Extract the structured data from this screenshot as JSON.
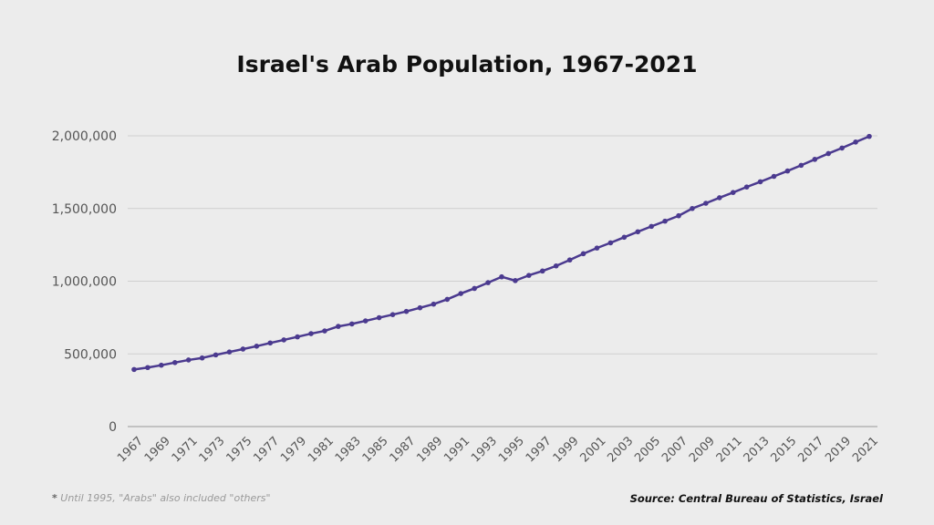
{
  "chart_data": {
    "type": "line",
    "title": "Israel's Arab Population, 1967-2021",
    "xlabel": "",
    "ylabel": "",
    "ylim": [
      0,
      2000000
    ],
    "yticks": [
      0,
      500000,
      1000000,
      1500000,
      2000000
    ],
    "ytick_labels": [
      "0",
      "500,000",
      "1,000,000",
      "1,500,000",
      "2,000,000"
    ],
    "grid": true,
    "x": [
      1967,
      1968,
      1969,
      1970,
      1971,
      1972,
      1973,
      1974,
      1975,
      1976,
      1977,
      1978,
      1979,
      1980,
      1981,
      1982,
      1983,
      1984,
      1985,
      1986,
      1987,
      1988,
      1989,
      1990,
      1991,
      1992,
      1993,
      1994,
      1995,
      1996,
      1997,
      1998,
      1999,
      2000,
      2001,
      2002,
      2003,
      2004,
      2005,
      2006,
      2007,
      2008,
      2009,
      2010,
      2011,
      2012,
      2013,
      2014,
      2015,
      2016,
      2017,
      2018,
      2019,
      2020,
      2021
    ],
    "xtick_labels": [
      "1967",
      "1969",
      "1971",
      "1973",
      "1975",
      "1977",
      "1979",
      "1981",
      "1983",
      "1985",
      "1987",
      "1989",
      "1991",
      "1993",
      "1995",
      "1997",
      "1999",
      "2001",
      "2003",
      "2005",
      "2007",
      "2009",
      "2011",
      "2013",
      "2015",
      "2017",
      "2019",
      "2021"
    ],
    "series": [
      {
        "name": "Arab population",
        "color": "#4b3a8f",
        "values": [
          392700,
          406000,
          422000,
          440000,
          458000,
          472000,
          493000,
          513000,
          533000,
          553000,
          575000,
          596000,
          617000,
          639000,
          658000,
          689000,
          706000,
          727000,
          749000,
          770000,
          792000,
          817000,
          842000,
          875000,
          915000,
          950000,
          990000,
          1030000,
          1004000,
          1040000,
          1070000,
          1105000,
          1146000,
          1189000,
          1228000,
          1264000,
          1302000,
          1340000,
          1377000,
          1413000,
          1450000,
          1500000,
          1536000,
          1574000,
          1610000,
          1648000,
          1684000,
          1721000,
          1758000,
          1797000,
          1838000,
          1878000,
          1916000,
          1957000,
          1996000
        ]
      }
    ]
  },
  "footnote": {
    "marker": "*",
    "text": "Until 1995, \"Arabs\" also included \"others\""
  },
  "source": "Source: Central Bureau of Statistics, Israel"
}
